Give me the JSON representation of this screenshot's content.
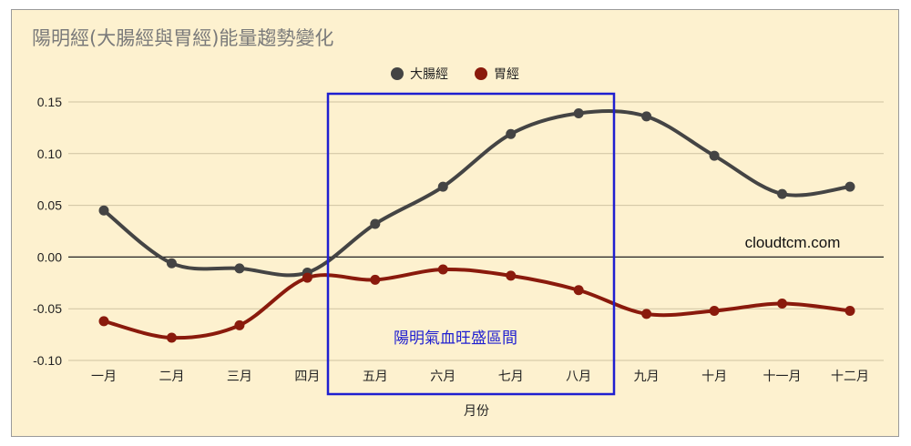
{
  "chart_data": {
    "type": "line",
    "title": "陽明經(大腸經與胃經)能量趨勢變化",
    "xlabel": "月份",
    "ylabel": "",
    "categories": [
      "一月",
      "二月",
      "三月",
      "四月",
      "五月",
      "六月",
      "七月",
      "八月",
      "九月",
      "十月",
      "十一月",
      "十二月"
    ],
    "ylim": [
      -0.1,
      0.15
    ],
    "yticks": [
      0.15,
      0.1,
      0.05,
      0.0,
      -0.05,
      -0.1
    ],
    "ytick_labels": [
      "0.15",
      "0.10",
      "0.05",
      "0.00",
      "-0.05",
      "-0.10"
    ],
    "grid": true,
    "legend_position": "top",
    "series": [
      {
        "name": "大腸經",
        "color": "#444444",
        "values": [
          0.045,
          -0.006,
          -0.011,
          -0.015,
          0.032,
          0.068,
          0.119,
          0.139,
          0.136,
          0.098,
          0.061,
          0.068
        ]
      },
      {
        "name": "胃經",
        "color": "#8a1a0c",
        "values": [
          -0.062,
          -0.078,
          -0.066,
          -0.02,
          -0.022,
          -0.012,
          -0.018,
          -0.032,
          -0.055,
          -0.052,
          -0.045,
          -0.052
        ]
      }
    ],
    "annotations": {
      "watermark": "cloudtcm.com",
      "highlight_label": "陽明氣血旺盛區間",
      "highlight_from": "五月",
      "highlight_to": "八月",
      "highlight_color": "#1f1fd0"
    }
  }
}
